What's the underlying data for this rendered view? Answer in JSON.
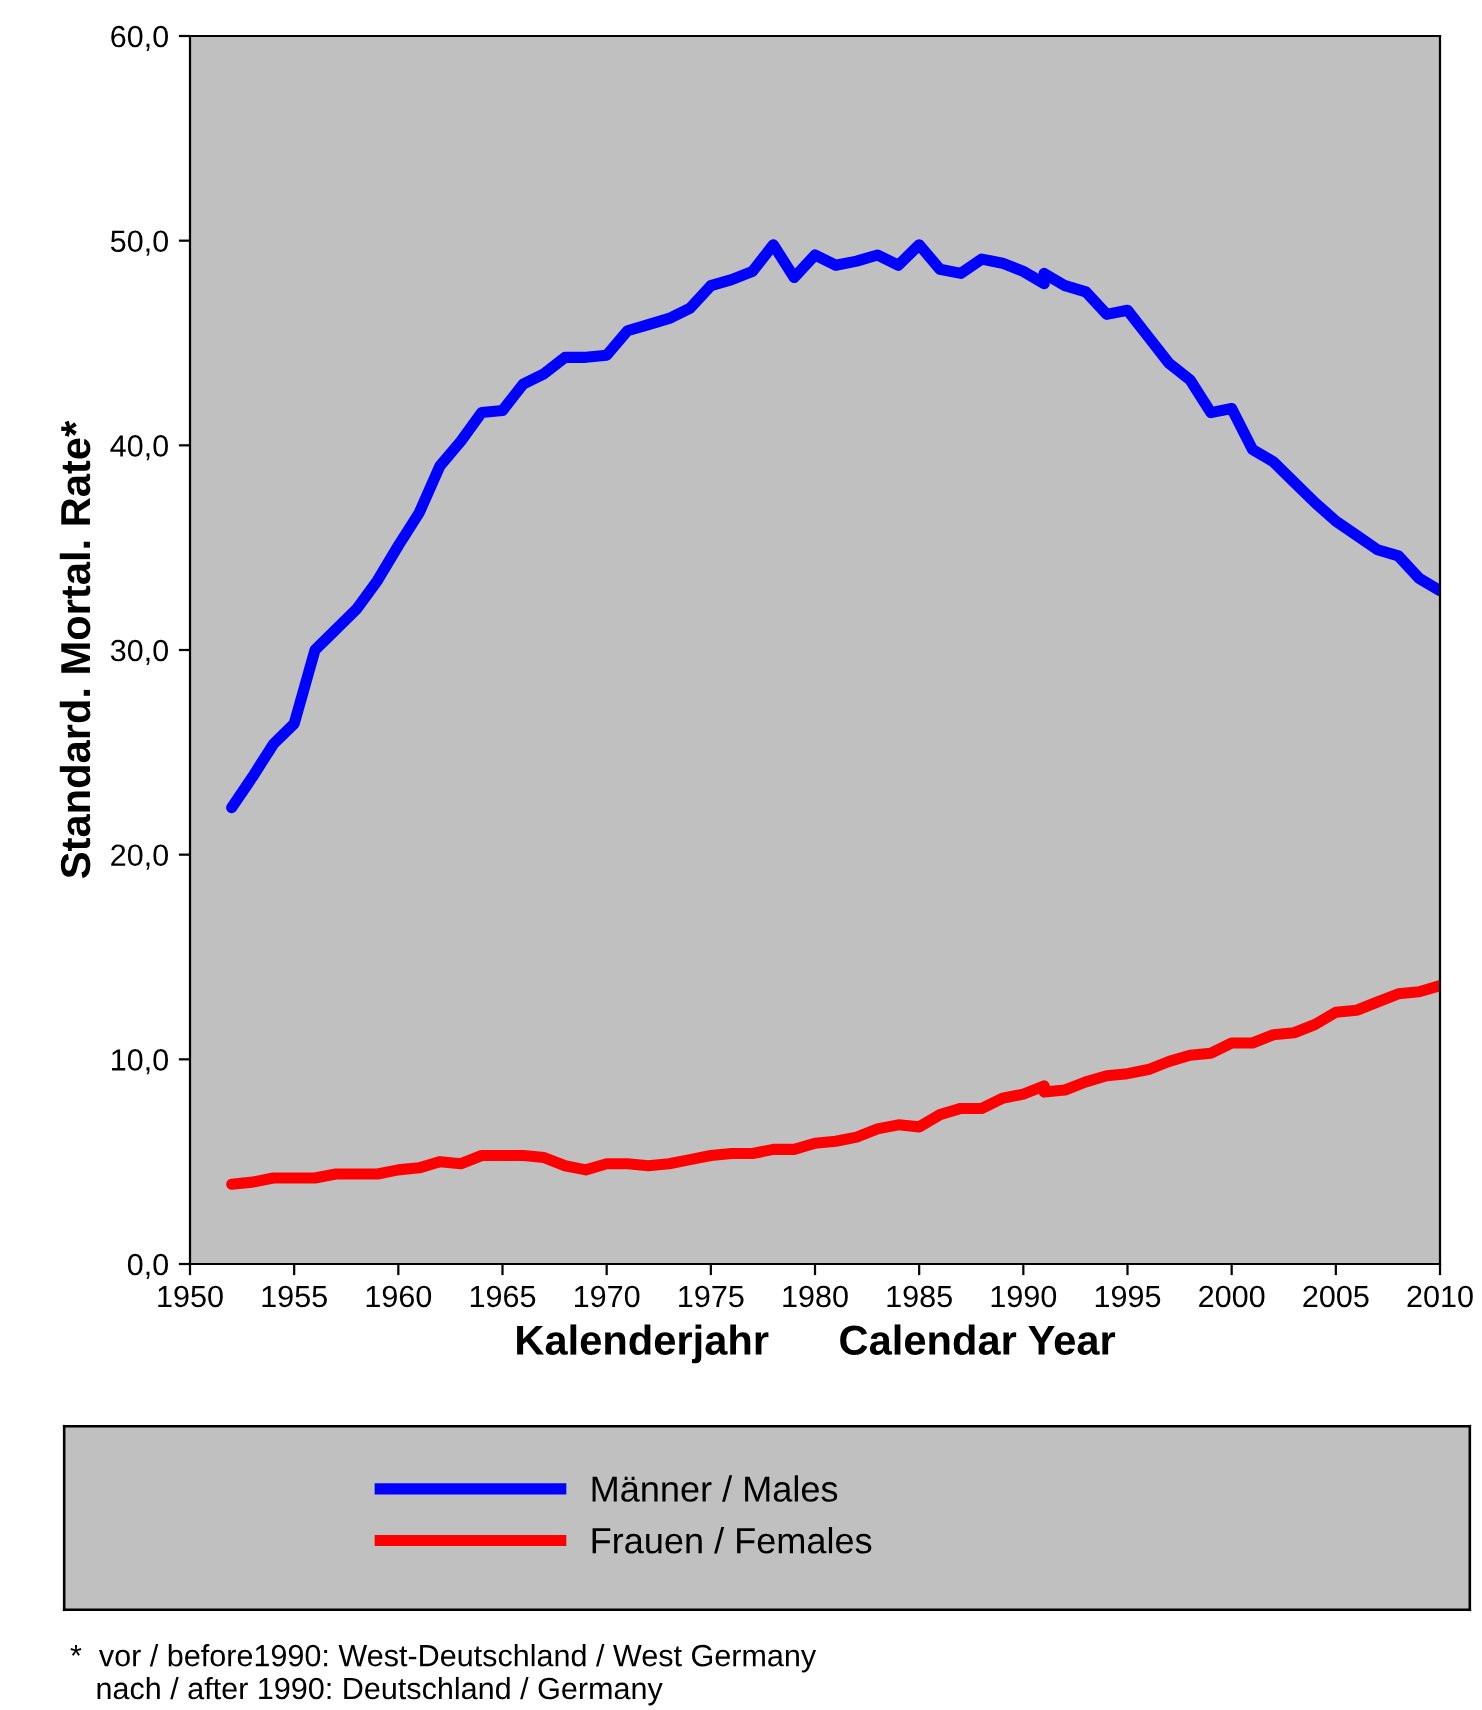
{
  "chart_data": {
    "type": "line",
    "xlabel": "Kalenderjahr      Calendar Year",
    "ylabel": "Standard. Mortal. Rate*",
    "series": [
      {
        "name": "Männer / Males",
        "color": "#0000ff",
        "x": [
          1952,
          1953,
          1954,
          1955,
          1956,
          1957,
          1958,
          1959,
          1960,
          1961,
          1962,
          1963,
          1964,
          1965,
          1966,
          1967,
          1968,
          1969,
          1970,
          1971,
          1972,
          1973,
          1974,
          1975,
          1976,
          1977,
          1978,
          1979,
          1980,
          1981,
          1982,
          1983,
          1984,
          1985,
          1986,
          1987,
          1988,
          1989,
          1990,
          1991
        ],
        "values": [
          22.3,
          23.8,
          25.4,
          26.4,
          30.0,
          31.0,
          32.0,
          33.4,
          35.1,
          36.7,
          39.0,
          40.2,
          41.6,
          41.7,
          43.0,
          43.5,
          44.3,
          44.3,
          44.4,
          45.6,
          45.9,
          46.2,
          46.7,
          47.8,
          48.1,
          48.5,
          49.8,
          48.2,
          49.3,
          48.8,
          49.0,
          49.3,
          48.8,
          49.8,
          48.6,
          48.4,
          49.1,
          48.9,
          48.5,
          47.9
        ]
      },
      {
        "color": "#0000ff",
        "x": [
          1991,
          1992,
          1993,
          1994,
          1995,
          1996,
          1997,
          1998,
          1999,
          2000,
          2001,
          2002,
          2003,
          2004,
          2005,
          2006,
          2007,
          2008,
          2009,
          2010
        ],
        "values": [
          48.4,
          47.8,
          47.5,
          46.4,
          46.6,
          45.3,
          44.0,
          43.2,
          41.6,
          41.8,
          39.8,
          39.2,
          38.2,
          37.2,
          36.3,
          35.6,
          34.9,
          34.6,
          33.5,
          32.9
        ]
      },
      {
        "name": "Frauen / Females",
        "color": "#ff0000",
        "x": [
          1952,
          1953,
          1954,
          1955,
          1956,
          1957,
          1958,
          1959,
          1960,
          1961,
          1962,
          1963,
          1964,
          1965,
          1966,
          1967,
          1968,
          1969,
          1970,
          1971,
          1972,
          1973,
          1974,
          1975,
          1976,
          1977,
          1978,
          1979,
          1980,
          1981,
          1982,
          1983,
          1984,
          1985,
          1986,
          1987,
          1988,
          1989,
          1990,
          1991
        ],
        "values": [
          3.9,
          4.0,
          4.2,
          4.2,
          4.2,
          4.4,
          4.4,
          4.4,
          4.6,
          4.7,
          5.0,
          4.9,
          5.3,
          5.3,
          5.3,
          5.2,
          4.8,
          4.6,
          4.9,
          4.9,
          4.8,
          4.9,
          5.1,
          5.3,
          5.4,
          5.4,
          5.6,
          5.6,
          5.9,
          6.0,
          6.2,
          6.6,
          6.8,
          6.7,
          7.3,
          7.6,
          7.6,
          8.1,
          8.3,
          8.7
        ]
      },
      {
        "color": "#ff0000",
        "x": [
          1991,
          1992,
          1993,
          1994,
          1995,
          1996,
          1997,
          1998,
          1999,
          2000,
          2001,
          2002,
          2003,
          2004,
          2005,
          2006,
          2007,
          2008,
          2009,
          2010
        ],
        "values": [
          8.4,
          8.5,
          8.9,
          9.2,
          9.3,
          9.5,
          9.9,
          10.2,
          10.3,
          10.8,
          10.8,
          11.2,
          11.3,
          11.7,
          12.3,
          12.4,
          12.8,
          13.2,
          13.3,
          13.6
        ]
      }
    ],
    "xlim": [
      1950,
      2010
    ],
    "xticks": [
      1950,
      1955,
      1960,
      1965,
      1970,
      1975,
      1980,
      1985,
      1990,
      1995,
      2000,
      2005,
      2010
    ],
    "ylim": [
      0,
      60
    ],
    "yticks": [
      {
        "value": 0,
        "label": "0,0"
      },
      {
        "value": 10,
        "label": "10,0"
      },
      {
        "value": 20,
        "label": "20,0"
      },
      {
        "value": 30,
        "label": "30,0"
      },
      {
        "value": 40,
        "label": "40,0"
      },
      {
        "value": 50,
        "label": "50,0"
      },
      {
        "value": 60,
        "label": "60,0"
      }
    ],
    "grid": false,
    "legend": "bottom",
    "marker": "none",
    "line_style": "solid",
    "annotations": [
      "*  vor / before1990: West-Deutschland / West Germany\n   nach / after 1990: Deutschland / Germany"
    ]
  }
}
